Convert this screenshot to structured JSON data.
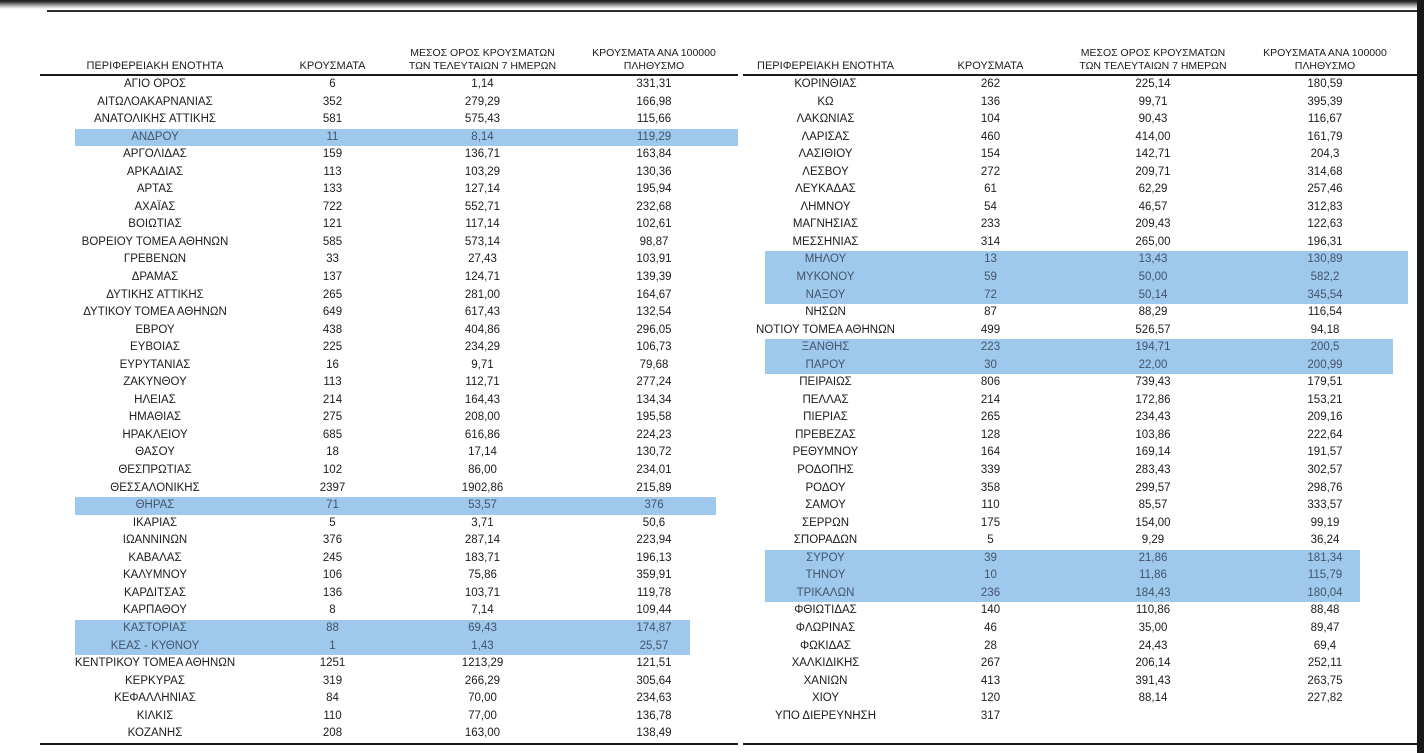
{
  "colors": {
    "highlight_row_background": "#9FC9EC",
    "highlight_row_text": "#44546A",
    "table_text": "#1C1C1C",
    "table_rule": "#191919"
  },
  "columns": [
    {
      "lines": [
        "ΠΕΡΙΦΕΡΕΙΑΚΗ ΕΝΟΤΗΤΑ"
      ]
    },
    {
      "lines": [
        "ΚΡΟΥΣΜΑΤΑ"
      ]
    },
    {
      "lines": [
        "ΜΕΣΟΣ ΟΡΟΣ ΚΡΟΥΣΜΑΤΩΝ",
        "ΤΩΝ ΤΕΛΕΥΤΑΙΩΝ 7 ΗΜΕΡΩΝ"
      ]
    },
    {
      "lines": [
        "ΚΡΟΥΣΜΑΤΑ ΑΝΑ 100000",
        "ΠΛΗΘΥΣΜΟ"
      ]
    }
  ],
  "tables": [
    {
      "side": "left",
      "rows": [
        {
          "name": "ΑΓΙΟ ΟΡΟΣ",
          "cases": "6",
          "avg7": "1,14",
          "per100k": "331,31",
          "hl": null
        },
        {
          "name": "ΑΙΤΩΛΟΑΚΑΡΝΑΝΙΑΣ",
          "cases": "352",
          "avg7": "279,29",
          "per100k": "166,98",
          "hl": null
        },
        {
          "name": "ΑΝΑΤΟΛΙΚΗΣ ΑΤΤΙΚΗΣ",
          "cases": "581",
          "avg7": "575,43",
          "per100k": "115,66",
          "hl": null
        },
        {
          "name": "ΑΝΔΡΟΥ",
          "cases": "11",
          "avg7": "8,14",
          "per100k": "119,29",
          "hl": "a"
        },
        {
          "name": "ΑΡΓΟΛΙΔΑΣ",
          "cases": "159",
          "avg7": "136,71",
          "per100k": "163,84",
          "hl": null
        },
        {
          "name": "ΑΡΚΑΔΙΑΣ",
          "cases": "113",
          "avg7": "103,29",
          "per100k": "130,36",
          "hl": null
        },
        {
          "name": "ΑΡΤΑΣ",
          "cases": "133",
          "avg7": "127,14",
          "per100k": "195,94",
          "hl": null
        },
        {
          "name": "ΑΧΑΪΑΣ",
          "cases": "722",
          "avg7": "552,71",
          "per100k": "232,68",
          "hl": null
        },
        {
          "name": "ΒΟΙΩΤΙΑΣ",
          "cases": "121",
          "avg7": "117,14",
          "per100k": "102,61",
          "hl": null
        },
        {
          "name": "ΒΟΡΕΙΟΥ ΤΟΜΕΑ ΑΘΗΝΩΝ",
          "cases": "585",
          "avg7": "573,14",
          "per100k": "98,87",
          "hl": null
        },
        {
          "name": "ΓΡΕΒΕΝΩΝ",
          "cases": "33",
          "avg7": "27,43",
          "per100k": "103,91",
          "hl": null
        },
        {
          "name": "ΔΡΑΜΑΣ",
          "cases": "137",
          "avg7": "124,71",
          "per100k": "139,39",
          "hl": null
        },
        {
          "name": "ΔΥΤΙΚΗΣ ΑΤΤΙΚΗΣ",
          "cases": "265",
          "avg7": "281,00",
          "per100k": "164,67",
          "hl": null
        },
        {
          "name": "ΔΥΤΙΚΟΥ ΤΟΜΕΑ ΑΘΗΝΩΝ",
          "cases": "649",
          "avg7": "617,43",
          "per100k": "132,54",
          "hl": null
        },
        {
          "name": "ΕΒΡΟΥ",
          "cases": "438",
          "avg7": "404,86",
          "per100k": "296,05",
          "hl": null
        },
        {
          "name": "ΕΥΒΟΙΑΣ",
          "cases": "225",
          "avg7": "234,29",
          "per100k": "106,73",
          "hl": null
        },
        {
          "name": "ΕΥΡΥΤΑΝΙΑΣ",
          "cases": "16",
          "avg7": "9,71",
          "per100k": "79,68",
          "hl": null
        },
        {
          "name": "ΖΑΚΥΝΘΟΥ",
          "cases": "113",
          "avg7": "112,71",
          "per100k": "277,24",
          "hl": null
        },
        {
          "name": "ΗΛΕΙΑΣ",
          "cases": "214",
          "avg7": "164,43",
          "per100k": "134,34",
          "hl": null
        },
        {
          "name": "ΗΜΑΘΙΑΣ",
          "cases": "275",
          "avg7": "208,00",
          "per100k": "195,58",
          "hl": null
        },
        {
          "name": "ΗΡΑΚΛΕΙΟΥ",
          "cases": "685",
          "avg7": "616,86",
          "per100k": "224,23",
          "hl": null
        },
        {
          "name": "ΘΑΣΟΥ",
          "cases": "18",
          "avg7": "17,14",
          "per100k": "130,72",
          "hl": null
        },
        {
          "name": "ΘΕΣΠΡΩΤΙΑΣ",
          "cases": "102",
          "avg7": "86,00",
          "per100k": "234,01",
          "hl": null
        },
        {
          "name": "ΘΕΣΣΑΛΟΝΙΚΗΣ",
          "cases": "2397",
          "avg7": "1902,86",
          "per100k": "215,89",
          "hl": null
        },
        {
          "name": "ΘΗΡΑΣ",
          "cases": "71",
          "avg7": "53,57",
          "per100k": "376",
          "hl": "b"
        },
        {
          "name": "ΙΚΑΡΙΑΣ",
          "cases": "5",
          "avg7": "3,71",
          "per100k": "50,6",
          "hl": null
        },
        {
          "name": "ΙΩΑΝΝΙΝΩΝ",
          "cases": "376",
          "avg7": "287,14",
          "per100k": "223,94",
          "hl": null
        },
        {
          "name": "ΚΑΒΑΛΑΣ",
          "cases": "245",
          "avg7": "183,71",
          "per100k": "196,13",
          "hl": null
        },
        {
          "name": "ΚΑΛΥΜΝΟΥ",
          "cases": "106",
          "avg7": "75,86",
          "per100k": "359,91",
          "hl": null
        },
        {
          "name": "ΚΑΡΔΙΤΣΑΣ",
          "cases": "136",
          "avg7": "103,71",
          "per100k": "119,78",
          "hl": null
        },
        {
          "name": "ΚΑΡΠΑΘΟΥ",
          "cases": "8",
          "avg7": "7,14",
          "per100k": "109,44",
          "hl": null
        },
        {
          "name": "ΚΑΣΤΟΡΙΑΣ",
          "cases": "88",
          "avg7": "69,43",
          "per100k": "174,87",
          "hl": "c"
        },
        {
          "name": "ΚΕΑΣ - ΚΥΘΝΟΥ",
          "cases": "1",
          "avg7": "1,43",
          "per100k": "25,57",
          "hl": "c"
        },
        {
          "name": "ΚΕΝΤΡΙΚΟΥ ΤΟΜΕΑ ΑΘΗΝΩΝ",
          "cases": "1251",
          "avg7": "1213,29",
          "per100k": "121,51",
          "hl": null
        },
        {
          "name": "ΚΕΡΚΥΡΑΣ",
          "cases": "319",
          "avg7": "266,29",
          "per100k": "305,64",
          "hl": null
        },
        {
          "name": "ΚΕΦΑΛΛΗΝΙΑΣ",
          "cases": "84",
          "avg7": "70,00",
          "per100k": "234,63",
          "hl": null
        },
        {
          "name": "ΚΙΛΚΙΣ",
          "cases": "110",
          "avg7": "77,00",
          "per100k": "136,78",
          "hl": null
        },
        {
          "name": "ΚΟΖΑΝΗΣ",
          "cases": "208",
          "avg7": "163,00",
          "per100k": "138,49",
          "hl": null
        }
      ]
    },
    {
      "side": "right",
      "rows": [
        {
          "name": "ΚΟΡΙΝΘΙΑΣ",
          "cases": "262",
          "avg7": "225,14",
          "per100k": "180,59",
          "hl": null
        },
        {
          "name": "ΚΩ",
          "cases": "136",
          "avg7": "99,71",
          "per100k": "395,39",
          "hl": null
        },
        {
          "name": "ΛΑΚΩΝΙΑΣ",
          "cases": "104",
          "avg7": "90,43",
          "per100k": "116,67",
          "hl": null
        },
        {
          "name": "ΛΑΡΙΣΑΣ",
          "cases": "460",
          "avg7": "414,00",
          "per100k": "161,79",
          "hl": null
        },
        {
          "name": "ΛΑΣΙΘΙΟΥ",
          "cases": "154",
          "avg7": "142,71",
          "per100k": "204,3",
          "hl": null
        },
        {
          "name": "ΛΕΣΒΟΥ",
          "cases": "272",
          "avg7": "209,71",
          "per100k": "314,68",
          "hl": null
        },
        {
          "name": "ΛΕΥΚΑΔΑΣ",
          "cases": "61",
          "avg7": "62,29",
          "per100k": "257,46",
          "hl": null
        },
        {
          "name": "ΛΗΜΝΟΥ",
          "cases": "54",
          "avg7": "46,57",
          "per100k": "312,83",
          "hl": null
        },
        {
          "name": "ΜΑΓΝΗΣΙΑΣ",
          "cases": "233",
          "avg7": "209,43",
          "per100k": "122,63",
          "hl": null
        },
        {
          "name": "ΜΕΣΣΗΝΙΑΣ",
          "cases": "314",
          "avg7": "265,00",
          "per100k": "196,31",
          "hl": null
        },
        {
          "name": "ΜΗΛΟΥ",
          "cases": "13",
          "avg7": "13,43",
          "per100k": "130,89",
          "hl": "d"
        },
        {
          "name": "ΜΥΚΟΝΟΥ",
          "cases": "59",
          "avg7": "50,00",
          "per100k": "582,2",
          "hl": "d"
        },
        {
          "name": "ΝΑΞΟΥ",
          "cases": "72",
          "avg7": "50,14",
          "per100k": "345,54",
          "hl": "d"
        },
        {
          "name": "ΝΗΣΩΝ",
          "cases": "87",
          "avg7": "88,29",
          "per100k": "116,54",
          "hl": null
        },
        {
          "name": "ΝΟΤΙΟΥ ΤΟΜΕΑ ΑΘΗΝΩΝ",
          "cases": "499",
          "avg7": "526,57",
          "per100k": "94,18",
          "hl": null
        },
        {
          "name": "ΞΑΝΘΗΣ",
          "cases": "223",
          "avg7": "194,71",
          "per100k": "200,5",
          "hl": "e"
        },
        {
          "name": "ΠΑΡΟΥ",
          "cases": "30",
          "avg7": "22,00",
          "per100k": "200,99",
          "hl": "e"
        },
        {
          "name": "ΠΕΙΡΑΙΩΣ",
          "cases": "806",
          "avg7": "739,43",
          "per100k": "179,51",
          "hl": null
        },
        {
          "name": "ΠΕΛΛΑΣ",
          "cases": "214",
          "avg7": "172,86",
          "per100k": "153,21",
          "hl": null
        },
        {
          "name": "ΠΙΕΡΙΑΣ",
          "cases": "265",
          "avg7": "234,43",
          "per100k": "209,16",
          "hl": null
        },
        {
          "name": "ΠΡΕΒΕΖΑΣ",
          "cases": "128",
          "avg7": "103,86",
          "per100k": "222,64",
          "hl": null
        },
        {
          "name": "ΡΕΘΥΜΝΟΥ",
          "cases": "164",
          "avg7": "169,14",
          "per100k": "191,57",
          "hl": null
        },
        {
          "name": "ΡΟΔΟΠΗΣ",
          "cases": "339",
          "avg7": "283,43",
          "per100k": "302,57",
          "hl": null
        },
        {
          "name": "ΡΟΔΟΥ",
          "cases": "358",
          "avg7": "299,57",
          "per100k": "298,76",
          "hl": null
        },
        {
          "name": "ΣΑΜΟΥ",
          "cases": "110",
          "avg7": "85,57",
          "per100k": "333,57",
          "hl": null
        },
        {
          "name": "ΣΕΡΡΩΝ",
          "cases": "175",
          "avg7": "154,00",
          "per100k": "99,19",
          "hl": null
        },
        {
          "name": "ΣΠΟΡΑΔΩΝ",
          "cases": "5",
          "avg7": "9,29",
          "per100k": "36,24",
          "hl": null
        },
        {
          "name": "ΣΥΡΟΥ",
          "cases": "39",
          "avg7": "21,86",
          "per100k": "181,34",
          "hl": "f"
        },
        {
          "name": "ΤΗΝΟΥ",
          "cases": "10",
          "avg7": "11,86",
          "per100k": "115,79",
          "hl": "f"
        },
        {
          "name": "ΤΡΙΚΑΛΩΝ",
          "cases": "236",
          "avg7": "184,43",
          "per100k": "180,04",
          "hl": "f"
        },
        {
          "name": "ΦΘΙΩΤΙΔΑΣ",
          "cases": "140",
          "avg7": "110,86",
          "per100k": "88,48",
          "hl": null
        },
        {
          "name": "ΦΛΩΡΙΝΑΣ",
          "cases": "46",
          "avg7": "35,00",
          "per100k": "89,47",
          "hl": null
        },
        {
          "name": "ΦΩΚΙΔΑΣ",
          "cases": "28",
          "avg7": "24,43",
          "per100k": "69,4",
          "hl": null
        },
        {
          "name": "ΧΑΛΚΙΔΙΚΗΣ",
          "cases": "267",
          "avg7": "206,14",
          "per100k": "252,11",
          "hl": null
        },
        {
          "name": "ΧΑΝΙΩΝ",
          "cases": "413",
          "avg7": "391,43",
          "per100k": "263,75",
          "hl": null
        },
        {
          "name": "ΧΙΟΥ",
          "cases": "120",
          "avg7": "88,14",
          "per100k": "227,82",
          "hl": null
        },
        {
          "name": "ΥΠΟ ΔΙΕΡΕΥΝΗΣΗ",
          "cases": "317",
          "avg7": "",
          "per100k": "",
          "hl": null
        }
      ]
    }
  ]
}
